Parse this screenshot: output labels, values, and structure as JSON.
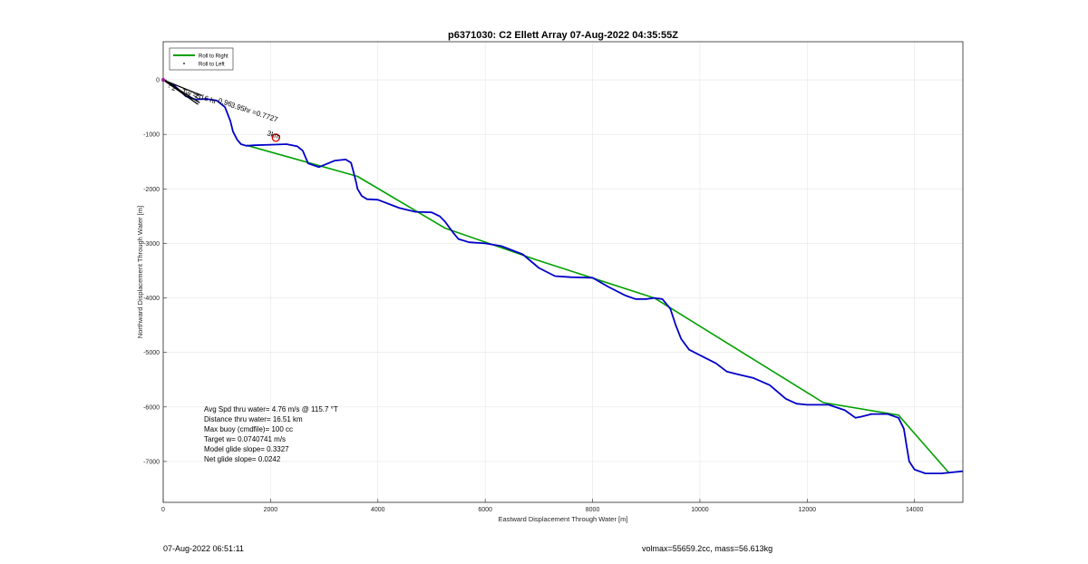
{
  "chart_data": {
    "type": "line",
    "title": "p6371030: C2 Ellett Array 07-Aug-2022 04:35:55Z",
    "xlabel": "Eastward Displacement Through Water [m]",
    "ylabel": "Northward Displacement Through Water [m]",
    "xlim": [
      0,
      14900
    ],
    "ylim": [
      -7750,
      700
    ],
    "xticks": [
      0,
      2000,
      4000,
      6000,
      8000,
      10000,
      12000,
      14000
    ],
    "yticks": [
      0,
      -1000,
      -2000,
      -3000,
      -4000,
      -5000,
      -6000,
      -7000
    ],
    "grid": true,
    "legend_position": "top-left",
    "legend": [
      "Roll to Right",
      "Roll to Left"
    ],
    "series": [
      {
        "name": "Roll to Right",
        "color": "#00a000",
        "x": [
          1550,
          3620,
          5250,
          6950,
          9150,
          12300,
          13700,
          14650
        ],
        "y": [
          -1200,
          -1770,
          -2720,
          -3300,
          -4000,
          -5920,
          -6150,
          -7220
        ]
      },
      {
        "name": "track",
        "color": "#0000c8",
        "x": [
          0,
          200,
          420,
          600,
          800,
          1000,
          1150,
          1250,
          1300,
          1380,
          1450,
          1550,
          1700,
          2000,
          2300,
          2500,
          2600,
          2700,
          2900,
          3200,
          3400,
          3500,
          3550,
          3600,
          3620,
          3700,
          3800,
          4000,
          4400,
          4700,
          5000,
          5150,
          5250,
          5400,
          5500,
          5700,
          6000,
          6300,
          6700,
          7000,
          7300,
          7600,
          8000,
          8300,
          8600,
          8800,
          9000,
          9150,
          9300,
          9450,
          9550,
          9650,
          9800,
          10000,
          10300,
          10500,
          10700,
          11000,
          11300,
          11600,
          11800,
          12000,
          12400,
          12700,
          12900,
          13000,
          13200,
          13500,
          13700,
          13800,
          13850,
          13900,
          14000,
          14200,
          14500,
          14700,
          14900
        ],
        "y": [
          0,
          -100,
          -300,
          -360,
          -350,
          -380,
          -500,
          -750,
          -950,
          -1100,
          -1180,
          -1210,
          -1200,
          -1190,
          -1180,
          -1220,
          -1300,
          -1530,
          -1600,
          -1480,
          -1460,
          -1520,
          -1700,
          -1900,
          -2000,
          -2130,
          -2190,
          -2200,
          -2350,
          -2420,
          -2430,
          -2500,
          -2600,
          -2800,
          -2920,
          -2980,
          -3000,
          -3050,
          -3200,
          -3450,
          -3600,
          -3620,
          -3630,
          -3800,
          -3950,
          -4020,
          -4020,
          -4000,
          -4020,
          -4200,
          -4500,
          -4750,
          -4950,
          -5050,
          -5200,
          -5350,
          -5400,
          -5470,
          -5600,
          -5850,
          -5940,
          -5960,
          -5960,
          -6060,
          -6200,
          -6180,
          -6130,
          -6130,
          -6200,
          -6400,
          -6700,
          -7000,
          -7150,
          -7220,
          -7220,
          -7200,
          -7180
        ]
      }
    ],
    "marker_point": {
      "x": 2100,
      "y": -1060,
      "color": "#e00000"
    },
    "arrow_lines": [
      {
        "x": [
          0,
          720
        ],
        "y": [
          0,
          -290
        ]
      },
      {
        "x": [
          0,
          650
        ],
        "y": [
          0,
          -450
        ]
      },
      {
        "x": [
          0,
          680
        ],
        "y": [
          0,
          -420
        ]
      }
    ],
    "inplot_labels": [
      "?",
      "2",
      "Tw =5",
      "1.16 hr",
      "0.96",
      "3.95hr =0.7727",
      "3km"
    ],
    "stats_text": [
      "Avg Spd thru water=  4.76 m/s @ 115.7 °T",
      "Distance thru water= 16.51 km",
      "Max buoy (cmdfile)= 100 cc",
      "Target w= 0.0740741 m/s",
      "Model glide slope= 0.3327",
      "Net glide slope= 0.0242"
    ]
  },
  "footer": {
    "timestamp": "07-Aug-2022 06:51:11",
    "volume_mass": "volmax=55659.2cc, mass=56.613kg"
  }
}
